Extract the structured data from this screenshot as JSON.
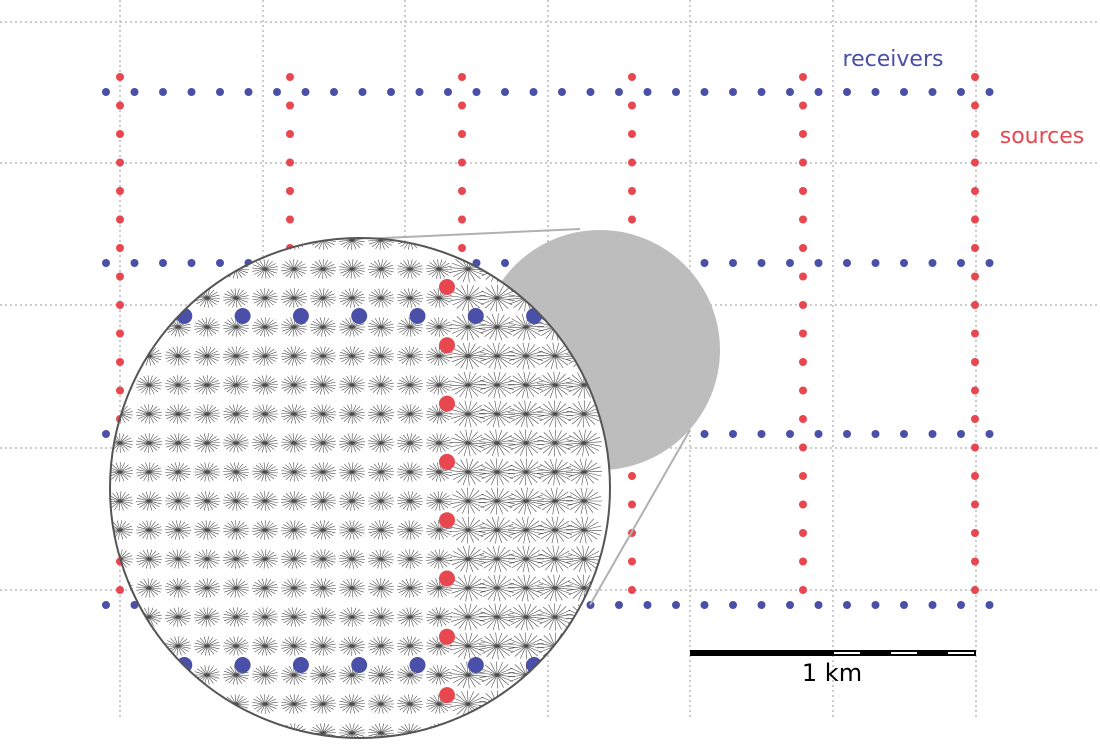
{
  "legend": {
    "receivers_label": "receivers",
    "sources_label": "sources"
  },
  "scale_bar": {
    "label": "1 km"
  },
  "colors": {
    "receivers": "#4a4fa8",
    "sources": "#e8474f",
    "grid": "#9a9a9a",
    "magnifier_lens": "#bdbdbd",
    "magnifier_outline": "#555555",
    "ray_fans": "#000000",
    "background": "#ffffff"
  },
  "survey": {
    "receiver_line_count": 4,
    "source_line_count": 6,
    "receivers_per_line": 32,
    "sources_per_line": 19
  }
}
